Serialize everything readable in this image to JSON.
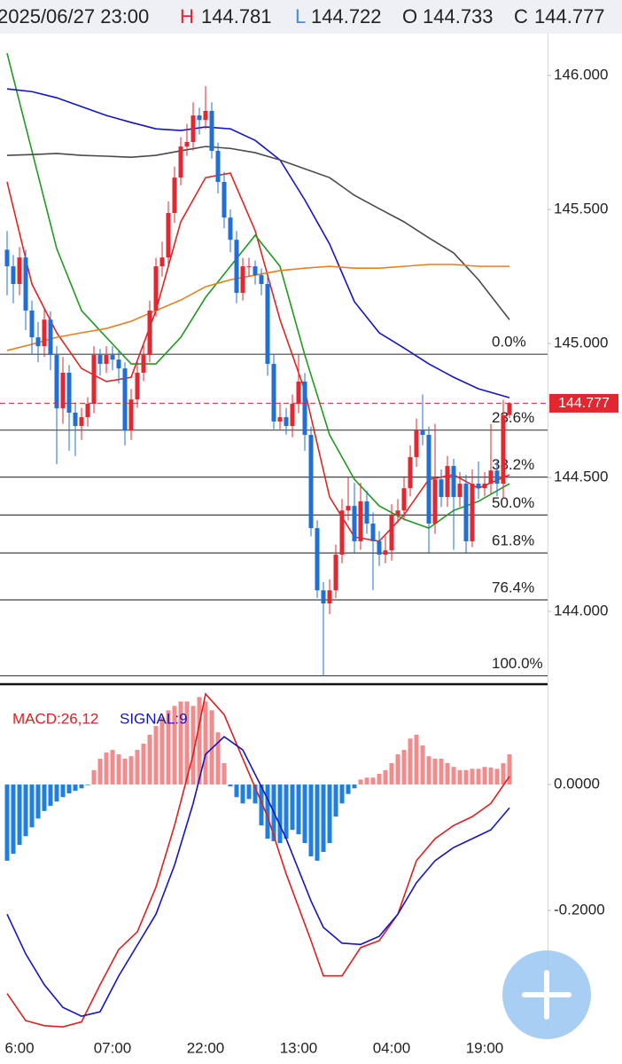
{
  "header": {
    "datetime": "2025/06/27 23:00",
    "labels": [
      "H",
      "L",
      "O",
      "C"
    ]
  },
  "chart_data": [
    {
      "type": "candlestick",
      "categories": [
        null,
        null,
        "6:00",
        null,
        null,
        null,
        null,
        null,
        null,
        null,
        null,
        null,
        null,
        null,
        null,
        null,
        null,
        "07:00",
        null,
        null,
        null,
        null,
        null,
        null,
        null,
        null,
        null,
        null,
        null,
        null,
        null,
        null,
        "22:00",
        null,
        null,
        null,
        null,
        null,
        null,
        null,
        null,
        null,
        null,
        null,
        null,
        null,
        null,
        "13:00",
        null,
        null,
        null,
        null,
        null,
        null,
        null,
        null,
        null,
        null,
        null,
        null,
        null,
        null,
        "04:00",
        null,
        null,
        null,
        null,
        null,
        null,
        null,
        null,
        null,
        null,
        null,
        null,
        null,
        null,
        "19:00",
        null,
        null,
        null,
        null
      ],
      "open": [
        145.35,
        145.288,
        145.222,
        145.321,
        145.123,
        145.023,
        144.99,
        145.089,
        144.957,
        144.758,
        144.891,
        144.742,
        144.692,
        144.725,
        144.775,
        144.957,
        144.924,
        144.957,
        144.94,
        144.907,
        144.675,
        144.791,
        144.891,
        144.957,
        145.123,
        145.288,
        145.321,
        145.487,
        145.619,
        145.735,
        145.752,
        145.851,
        145.834,
        145.868,
        145.719,
        145.603,
        145.47,
        145.387,
        145.189,
        145.288,
        145.288,
        145.255,
        145.222,
        144.924,
        144.709,
        144.725,
        144.692,
        144.775,
        144.858,
        144.659,
        144.311,
        144.079,
        144.03,
        144.079,
        144.212,
        144.377,
        144.394,
        144.262,
        144.411,
        144.328,
        144.262,
        144.212,
        144.228,
        144.361,
        144.377,
        144.46,
        144.576,
        144.675,
        144.659,
        144.328,
        144.493,
        144.427,
        144.543,
        144.427,
        144.477,
        144.262,
        144.477,
        144.46,
        144.477,
        144.526,
        144.477,
        144.733
      ],
      "high": [
        145.42,
        145.33,
        145.36,
        145.35,
        145.16,
        145.08,
        145.13,
        145.12,
        144.99,
        144.95,
        144.92,
        144.78,
        144.76,
        144.8,
        144.99,
        144.98,
        144.99,
        144.99,
        144.97,
        144.93,
        144.83,
        144.93,
        145.0,
        145.16,
        145.32,
        145.38,
        145.53,
        145.66,
        145.77,
        145.82,
        145.9,
        145.88,
        145.96,
        145.9,
        145.75,
        145.64,
        145.5,
        145.42,
        145.32,
        145.32,
        145.31,
        145.28,
        145.25,
        144.96,
        144.78,
        144.76,
        144.81,
        144.96,
        144.89,
        144.69,
        144.34,
        144.11,
        144.12,
        144.25,
        144.42,
        144.5,
        144.48,
        144.48,
        144.45,
        144.37,
        144.3,
        144.28,
        144.4,
        144.42,
        144.5,
        144.62,
        144.72,
        144.81,
        144.69,
        144.7,
        144.53,
        144.58,
        144.57,
        144.52,
        144.51,
        144.53,
        144.56,
        144.52,
        144.7,
        144.56,
        144.79,
        144.781
      ],
      "low": [
        145.18,
        145.15,
        145.18,
        145.05,
        144.96,
        144.93,
        144.95,
        144.9,
        144.55,
        144.7,
        144.6,
        144.58,
        144.64,
        144.69,
        144.74,
        144.88,
        144.89,
        144.9,
        144.85,
        144.62,
        144.64,
        144.76,
        144.86,
        144.93,
        145.1,
        145.25,
        145.29,
        145.45,
        145.59,
        145.7,
        145.72,
        145.78,
        145.8,
        145.69,
        145.56,
        145.43,
        145.34,
        145.15,
        145.16,
        145.25,
        145.22,
        145.18,
        144.88,
        144.68,
        144.68,
        144.66,
        144.65,
        144.74,
        144.6,
        144.28,
        144.05,
        143.76,
        143.99,
        144.05,
        144.18,
        144.34,
        144.22,
        144.23,
        144.29,
        144.08,
        144.17,
        144.18,
        144.19,
        144.33,
        144.34,
        144.43,
        144.54,
        144.62,
        144.22,
        144.29,
        144.39,
        144.39,
        144.23,
        144.39,
        144.22,
        144.24,
        144.42,
        144.43,
        144.44,
        144.43,
        144.42,
        144.722
      ],
      "close": [
        145.288,
        145.222,
        145.321,
        145.123,
        145.023,
        144.99,
        145.089,
        144.957,
        144.758,
        144.891,
        144.742,
        144.692,
        144.725,
        144.775,
        144.957,
        144.924,
        144.957,
        144.94,
        144.907,
        144.675,
        144.791,
        144.891,
        144.957,
        145.123,
        145.288,
        145.321,
        145.487,
        145.619,
        145.735,
        145.752,
        145.851,
        145.834,
        145.868,
        145.719,
        145.603,
        145.47,
        145.387,
        145.189,
        145.288,
        145.288,
        145.255,
        145.222,
        144.924,
        144.709,
        144.725,
        144.692,
        144.775,
        144.858,
        144.659,
        144.311,
        144.079,
        144.03,
        144.079,
        144.212,
        144.377,
        144.394,
        144.262,
        144.411,
        144.328,
        144.262,
        144.212,
        144.228,
        144.361,
        144.377,
        144.46,
        144.576,
        144.675,
        144.659,
        144.328,
        144.493,
        144.427,
        144.543,
        144.427,
        144.477,
        144.262,
        144.477,
        144.46,
        144.477,
        144.526,
        144.477,
        144.733,
        144.777
      ],
      "up_color": "#e3262f",
      "down_color": "#1f6fd6",
      "ylim": [
        143.732,
        146.156
      ],
      "yticks": [
        {
          "value": 146,
          "label": "146.000"
        },
        {
          "value": 145.5,
          "label": "145.500"
        },
        {
          "value": 145,
          "label": "145.000"
        },
        {
          "value": 144.5,
          "label": "144.500"
        },
        {
          "value": 144,
          "label": "144.000"
        }
      ],
      "ma_x": [
        0,
        4,
        8,
        12,
        16,
        20,
        24,
        28,
        32,
        36,
        40,
        44,
        48,
        52,
        56,
        60,
        64,
        68,
        72,
        76,
        81
      ],
      "ma": [
        {
          "color": "#e02424",
          "values": [
            145.603,
            145.222,
            145.04,
            144.907,
            144.858,
            144.874,
            145.123,
            145.454,
            145.619,
            145.636,
            145.421,
            145.089,
            144.825,
            144.427,
            144.278,
            144.262,
            144.361,
            144.493,
            144.51,
            144.46,
            144.51
          ]
        },
        {
          "color": "#1f9a1f",
          "values": [
            146.083,
            145.719,
            145.354,
            145.123,
            145.023,
            144.924,
            144.924,
            145.023,
            145.172,
            145.288,
            145.404,
            145.288,
            144.957,
            144.659,
            144.493,
            144.394,
            144.344,
            144.311,
            144.377,
            144.411,
            144.477
          ]
        },
        {
          "color": "#1414c8",
          "values": [
            145.95,
            145.94,
            145.917,
            145.884,
            145.851,
            145.825,
            145.801,
            145.795,
            145.808,
            145.801,
            145.758,
            145.685,
            145.536,
            145.371,
            145.156,
            145.04,
            144.983,
            144.924,
            144.874,
            144.831,
            144.798
          ]
        },
        {
          "color": "#4a4a4a",
          "values": [
            145.702,
            145.705,
            145.709,
            145.702,
            145.699,
            145.695,
            145.702,
            145.719,
            145.735,
            145.728,
            145.712,
            145.685,
            145.652,
            145.619,
            145.553,
            145.503,
            145.454,
            145.394,
            145.338,
            145.238,
            145.089
          ]
        },
        {
          "color": "#e6801e",
          "values": [
            144.974,
            144.997,
            145.023,
            145.04,
            145.056,
            145.083,
            145.123,
            145.162,
            145.212,
            145.238,
            145.255,
            145.272,
            145.281,
            145.288,
            145.281,
            145.281,
            145.288,
            145.295,
            145.295,
            145.288,
            145.288
          ]
        }
      ],
      "fib": {
        "high": 144.96,
        "low": 143.76,
        "levels": [
          {
            "value": 0,
            "label": "0.0%"
          },
          {
            "value": 23.6,
            "label": "23.6%"
          },
          {
            "value": 38.2,
            "label": "38.2%"
          },
          {
            "value": 50,
            "label": "50.0%"
          },
          {
            "value": 61.8,
            "label": "61.8%"
          },
          {
            "value": 76.4,
            "label": "76.4%"
          },
          {
            "value": 100,
            "label": "100.0%"
          }
        ]
      }
    },
    {
      "type": "macd",
      "histogram": [
        -0.121,
        -0.11,
        -0.096,
        -0.082,
        -0.068,
        -0.054,
        -0.042,
        -0.034,
        -0.027,
        -0.02,
        -0.014,
        -0.01,
        -0.006,
        -0.001,
        0.023,
        0.041,
        0.051,
        0.055,
        0.048,
        0.041,
        0.045,
        0.055,
        0.065,
        0.079,
        0.093,
        0.107,
        0.118,
        0.125,
        0.132,
        0.132,
        0.125,
        0.139,
        0.132,
        0.118,
        0.083,
        0.034,
        -0.003,
        -0.02,
        -0.03,
        -0.023,
        -0.03,
        -0.065,
        -0.086,
        -0.09,
        -0.093,
        -0.086,
        -0.072,
        -0.079,
        -0.093,
        -0.114,
        -0.121,
        -0.107,
        -0.093,
        -0.051,
        -0.03,
        -0.015,
        -0.006,
        0.008,
        0.011,
        0.011,
        0.017,
        0.023,
        0.034,
        0.048,
        0.055,
        0.073,
        0.079,
        0.062,
        0.045,
        0.041,
        0.041,
        0.034,
        0.028,
        0.023,
        0.023,
        0.025,
        0.025,
        0.028,
        0.027,
        0.025,
        0.034,
        0.048
      ],
      "positive_color": "#f28c8c",
      "negative_color": "#1f7fe0",
      "x": [
        0,
        3,
        6,
        9,
        12,
        15,
        18,
        21,
        24,
        27,
        30,
        32,
        35,
        38,
        42,
        45,
        49,
        51,
        54,
        57,
        60,
        63,
        66,
        69,
        72,
        75,
        78,
        81
      ],
      "series": [
        {
          "name": "MACD:26,12",
          "color": "#e01e1e",
          "values": [
            -0.332,
            -0.375,
            -0.383,
            -0.385,
            -0.377,
            -0.318,
            -0.262,
            -0.234,
            -0.163,
            -0.065,
            0.048,
            0.144,
            0.111,
            0.041,
            -0.051,
            -0.142,
            -0.248,
            -0.304,
            -0.304,
            -0.259,
            -0.248,
            -0.206,
            -0.121,
            -0.086,
            -0.065,
            -0.051,
            -0.03,
            0.013
          ]
        },
        {
          "name": "SIGNAL:9",
          "color": "#1414c8",
          "values": [
            -0.206,
            -0.269,
            -0.318,
            -0.354,
            -0.368,
            -0.361,
            -0.304,
            -0.255,
            -0.206,
            -0.128,
            -0.03,
            0.048,
            0.076,
            0.055,
            -0.023,
            -0.086,
            -0.185,
            -0.227,
            -0.252,
            -0.254,
            -0.241,
            -0.206,
            -0.156,
            -0.121,
            -0.1,
            -0.086,
            -0.072,
            -0.037
          ]
        }
      ],
      "ylim": [
        -0.396,
        0.158
      ],
      "yticks": [
        {
          "value": 0,
          "label": "0.0000"
        },
        {
          "value": -0.2,
          "label": "-0.2000"
        }
      ]
    }
  ]
}
